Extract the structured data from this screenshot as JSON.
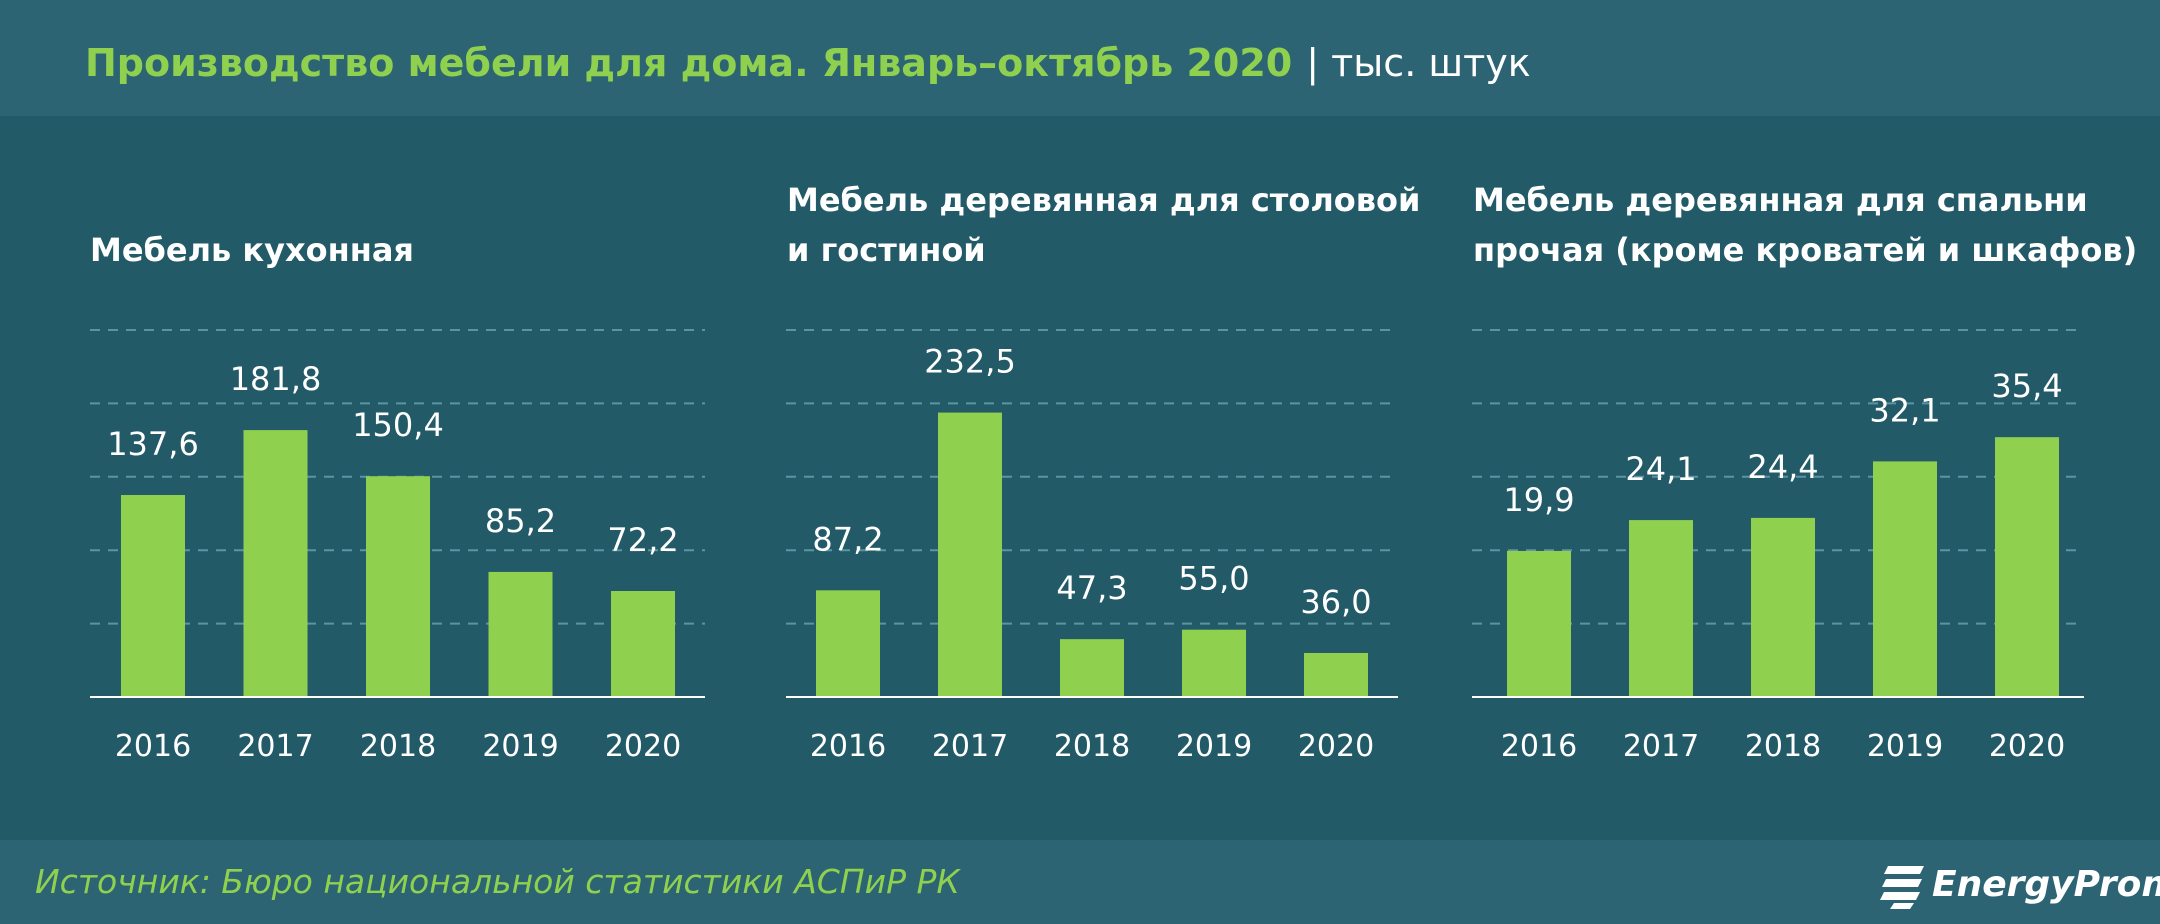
{
  "header": {
    "title": "Производство мебели для дома. Январь–октябрь 2020",
    "separator": "|",
    "unit": "тыс. штук"
  },
  "colors": {
    "background": "#235a68",
    "band": "#2c6473",
    "bar": "#8fd14f",
    "accent_text": "#8fd14f",
    "gridline": "#5b95a3"
  },
  "chart_data": [
    {
      "type": "bar",
      "title_lines": [
        "Мебель кухонная"
      ],
      "categories": [
        "2016",
        "2017",
        "2018",
        "2019",
        "2020"
      ],
      "values": [
        137.6,
        181.8,
        150.4,
        85.2,
        72.2
      ],
      "value_labels": [
        "137,6",
        "181,8",
        "150,4",
        "85,2",
        "72,2"
      ],
      "grid": true,
      "ylim": [
        0,
        250
      ]
    },
    {
      "type": "bar",
      "title_lines": [
        "Мебель деревянная для столовой",
        "и гостиной"
      ],
      "categories": [
        "2016",
        "2017",
        "2018",
        "2019",
        "2020"
      ],
      "values": [
        87.2,
        232.5,
        47.3,
        55.0,
        36.0
      ],
      "value_labels": [
        "87,2",
        "232,5",
        "47,3",
        "55,0",
        "36,0"
      ],
      "grid": true,
      "ylim": [
        0,
        300
      ]
    },
    {
      "type": "bar",
      "title_lines": [
        "Мебель деревянная для спальни",
        "прочая (кроме кроватей и шкафов)"
      ],
      "categories": [
        "2016",
        "2017",
        "2018",
        "2019",
        "2020"
      ],
      "values": [
        19.9,
        24.1,
        24.4,
        32.1,
        35.4
      ],
      "value_labels": [
        "19,9",
        "24,1",
        "24,4",
        "32,1",
        "35,4"
      ],
      "grid": true,
      "ylim": [
        0,
        50
      ]
    }
  ],
  "footer": {
    "source": "Источник: Бюро национальной  статистики АСПиР РК",
    "logo_text": "EnergyProm",
    "logo_icon": "energyprom-logo-icon"
  }
}
